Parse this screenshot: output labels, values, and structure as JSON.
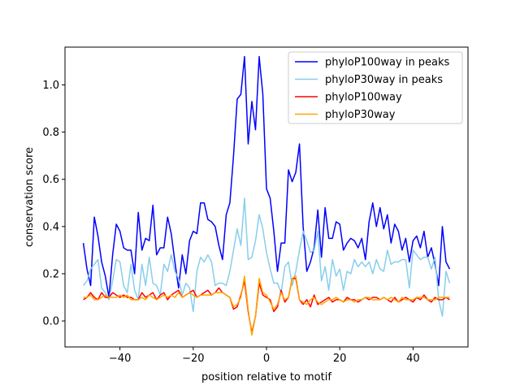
{
  "chart_data": {
    "type": "line",
    "title": "",
    "xlabel": "position relative to motif",
    "ylabel": "conservation score",
    "xlim": [
      -55,
      55
    ],
    "ylim": [
      -0.11,
      1.16
    ],
    "xticks": [
      -40,
      -20,
      0,
      20,
      40
    ],
    "yticks": [
      0.0,
      0.2,
      0.4,
      0.6,
      0.8,
      1.0
    ],
    "xtick_labels": [
      "−40",
      "−20",
      "0",
      "20",
      "40"
    ],
    "ytick_labels": [
      "0.0",
      "0.2",
      "0.4",
      "0.6",
      "0.8",
      "1.0"
    ],
    "legend_position": "upper-right",
    "x": [
      -50,
      -49,
      -48,
      -47,
      -46,
      -45,
      -44,
      -43,
      -42,
      -41,
      -40,
      -39,
      -38,
      -37,
      -36,
      -35,
      -34,
      -33,
      -32,
      -31,
      -30,
      -29,
      -28,
      -27,
      -26,
      -25,
      -24,
      -23,
      -22,
      -21,
      -20,
      -19,
      -18,
      -17,
      -16,
      -15,
      -14,
      -13,
      -12,
      -11,
      -10,
      -9,
      -8,
      -7,
      -6,
      -5,
      -4,
      -3,
      -2,
      -1,
      0,
      1,
      2,
      3,
      4,
      5,
      6,
      7,
      8,
      9,
      10,
      11,
      12,
      13,
      14,
      15,
      16,
      17,
      18,
      19,
      20,
      21,
      22,
      23,
      24,
      25,
      26,
      27,
      28,
      29,
      30,
      31,
      32,
      33,
      34,
      35,
      36,
      37,
      38,
      39,
      40,
      41,
      42,
      43,
      44,
      45,
      46,
      47,
      48,
      49,
      50
    ],
    "series": [
      {
        "name": "phyloP100way in peaks",
        "color": "#0000ff",
        "values": [
          0.33,
          0.22,
          0.15,
          0.44,
          0.36,
          0.25,
          0.19,
          0.1,
          0.28,
          0.41,
          0.38,
          0.31,
          0.3,
          0.3,
          0.2,
          0.46,
          0.3,
          0.35,
          0.34,
          0.49,
          0.28,
          0.31,
          0.31,
          0.44,
          0.37,
          0.25,
          0.14,
          0.28,
          0.2,
          0.34,
          0.38,
          0.37,
          0.5,
          0.5,
          0.43,
          0.42,
          0.4,
          0.32,
          0.26,
          0.45,
          0.5,
          0.7,
          0.94,
          0.96,
          1.12,
          0.75,
          0.93,
          0.81,
          1.12,
          0.96,
          0.56,
          0.52,
          0.38,
          0.21,
          0.33,
          0.33,
          0.64,
          0.59,
          0.63,
          0.75,
          0.4,
          0.21,
          0.25,
          0.31,
          0.47,
          0.27,
          0.48,
          0.35,
          0.35,
          0.42,
          0.41,
          0.3,
          0.33,
          0.35,
          0.34,
          0.31,
          0.35,
          0.26,
          0.42,
          0.5,
          0.4,
          0.48,
          0.39,
          0.45,
          0.33,
          0.41,
          0.38,
          0.3,
          0.35,
          0.25,
          0.34,
          0.36,
          0.31,
          0.38,
          0.27,
          0.31,
          0.24,
          0.15,
          0.4,
          0.25,
          0.22
        ]
      },
      {
        "name": "phyloP30way in peaks",
        "color": "#87ceeb",
        "values": [
          0.15,
          0.17,
          0.22,
          0.24,
          0.26,
          0.14,
          0.12,
          0.09,
          0.17,
          0.26,
          0.25,
          0.15,
          0.12,
          0.24,
          0.13,
          0.09,
          0.24,
          0.15,
          0.27,
          0.16,
          0.15,
          0.11,
          0.24,
          0.21,
          0.28,
          0.21,
          0.18,
          0.11,
          0.16,
          0.14,
          0.04,
          0.21,
          0.27,
          0.25,
          0.28,
          0.25,
          0.15,
          0.16,
          0.16,
          0.15,
          0.21,
          0.3,
          0.39,
          0.32,
          0.52,
          0.26,
          0.27,
          0.34,
          0.45,
          0.39,
          0.29,
          0.22,
          0.16,
          0.16,
          0.12,
          0.23,
          0.25,
          0.15,
          0.21,
          0.3,
          0.38,
          0.34,
          0.29,
          0.3,
          0.38,
          0.17,
          0.23,
          0.13,
          0.26,
          0.19,
          0.22,
          0.13,
          0.21,
          0.2,
          0.26,
          0.23,
          0.25,
          0.23,
          0.25,
          0.2,
          0.26,
          0.22,
          0.21,
          0.3,
          0.24,
          0.25,
          0.25,
          0.26,
          0.26,
          0.14,
          0.3,
          0.28,
          0.26,
          0.27,
          0.27,
          0.22,
          0.27,
          0.09,
          0.02,
          0.21,
          0.16
        ]
      },
      {
        "name": "phyloP100way",
        "color": "#ff0000",
        "values": [
          0.09,
          0.1,
          0.12,
          0.1,
          0.09,
          0.12,
          0.1,
          0.1,
          0.12,
          0.11,
          0.1,
          0.11,
          0.1,
          0.1,
          0.09,
          0.09,
          0.12,
          0.1,
          0.11,
          0.12,
          0.09,
          0.11,
          0.12,
          0.09,
          0.11,
          0.12,
          0.13,
          0.1,
          0.11,
          0.12,
          0.13,
          0.1,
          0.11,
          0.12,
          0.13,
          0.11,
          0.12,
          0.14,
          0.12,
          0.11,
          0.1,
          0.05,
          0.06,
          0.11,
          0.17,
          0.04,
          -0.05,
          0.02,
          0.16,
          0.11,
          0.1,
          0.09,
          0.04,
          0.06,
          0.13,
          0.08,
          0.1,
          0.18,
          0.18,
          0.09,
          0.07,
          0.09,
          0.06,
          0.11,
          0.07,
          0.08,
          0.09,
          0.1,
          0.08,
          0.09,
          0.09,
          0.08,
          0.1,
          0.09,
          0.09,
          0.08,
          0.09,
          0.1,
          0.09,
          0.1,
          0.1,
          0.09,
          0.1,
          0.09,
          0.08,
          0.1,
          0.08,
          0.09,
          0.1,
          0.09,
          0.08,
          0.1,
          0.09,
          0.11,
          0.09,
          0.08,
          0.1,
          0.09,
          0.09,
          0.1,
          0.09
        ]
      },
      {
        "name": "phyloP30way",
        "color": "#ffa500",
        "values": [
          0.1,
          0.1,
          0.11,
          0.09,
          0.09,
          0.1,
          0.11,
          0.1,
          0.1,
          0.1,
          0.11,
          0.1,
          0.11,
          0.09,
          0.09,
          0.09,
          0.1,
          0.09,
          0.11,
          0.1,
          0.09,
          0.1,
          0.11,
          0.1,
          0.11,
          0.1,
          0.12,
          0.1,
          0.11,
          0.12,
          0.11,
          0.1,
          0.11,
          0.11,
          0.11,
          0.11,
          0.12,
          0.12,
          0.12,
          0.11,
          0.1,
          0.06,
          0.07,
          0.1,
          0.19,
          0.05,
          -0.06,
          0.02,
          0.18,
          0.12,
          0.11,
          0.08,
          0.05,
          0.07,
          0.12,
          0.09,
          0.1,
          0.18,
          0.19,
          0.09,
          0.08,
          0.07,
          0.09,
          0.1,
          0.08,
          0.07,
          0.08,
          0.09,
          0.09,
          0.1,
          0.09,
          0.08,
          0.09,
          0.09,
          0.08,
          0.09,
          0.09,
          0.1,
          0.1,
          0.09,
          0.09,
          0.09,
          0.1,
          0.09,
          0.1,
          0.09,
          0.08,
          0.1,
          0.09,
          0.09,
          0.09,
          0.1,
          0.1,
          0.1,
          0.09,
          0.09,
          0.09,
          0.1,
          0.1,
          0.1,
          0.1
        ]
      }
    ]
  }
}
